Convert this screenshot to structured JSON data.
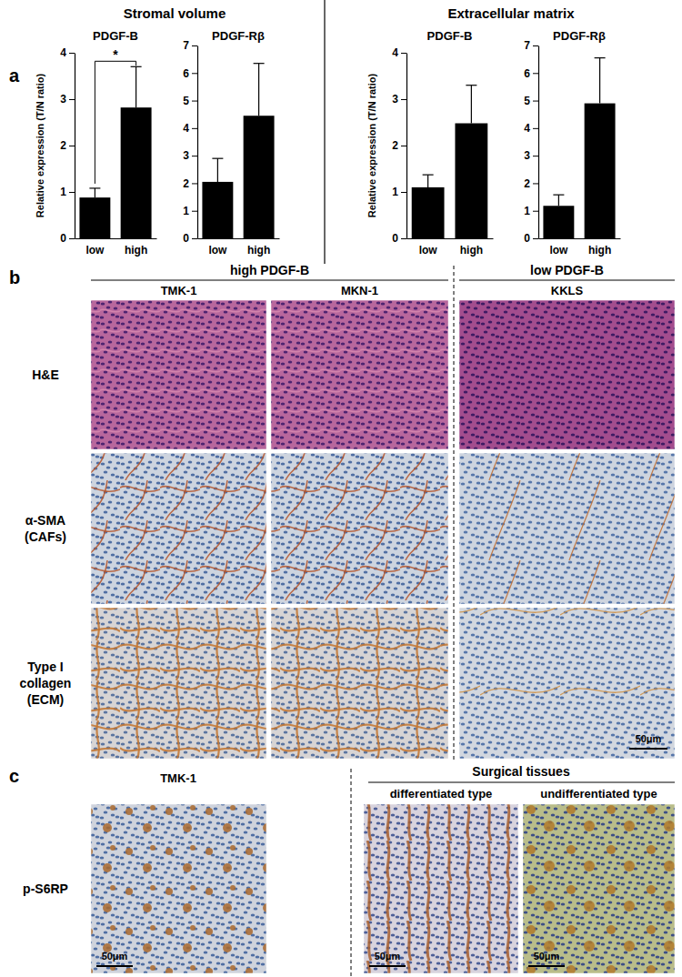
{
  "chart_data": [
    {
      "type": "bar",
      "title": "PDGF-B",
      "y_label": "Relative expression (T/N ratio)",
      "categories": [
        "low",
        "high"
      ],
      "values": [
        0.88,
        2.82
      ],
      "errors": [
        0.2,
        0.88
      ],
      "color": "#000000",
      "ylim": [
        0,
        4
      ],
      "yticks": [
        0,
        1,
        2,
        3,
        4
      ],
      "annotation": "*"
    },
    {
      "type": "bar",
      "title": "PDGF-Rβ",
      "categories": [
        "low",
        "high"
      ],
      "values": [
        2.05,
        4.45
      ],
      "errors": [
        0.85,
        1.9
      ],
      "color": "#000000",
      "ylim": [
        0,
        7
      ],
      "yticks": [
        0,
        1,
        2,
        3,
        4,
        5,
        6,
        7
      ]
    },
    {
      "type": "bar",
      "title": "PDGF-B",
      "y_label": "Relative expression (T/N ratio)",
      "categories": [
        "low",
        "high"
      ],
      "values": [
        1.1,
        2.48
      ],
      "errors": [
        0.27,
        0.82
      ],
      "color": "#000000",
      "ylim": [
        0,
        4
      ],
      "yticks": [
        0,
        1,
        2,
        3,
        4
      ]
    },
    {
      "type": "bar",
      "title": "PDGF-Rβ",
      "categories": [
        "low",
        "high"
      ],
      "values": [
        1.18,
        4.9
      ],
      "errors": [
        0.4,
        1.65
      ],
      "color": "#000000",
      "ylim": [
        0,
        7
      ],
      "yticks": [
        0,
        1,
        2,
        3,
        4,
        5,
        6,
        7
      ]
    }
  ],
  "panel_a": {
    "label": "a",
    "groups": [
      "Stromal volume",
      "Extracellular matrix"
    ]
  },
  "panel_b": {
    "label": "b",
    "groups": [
      {
        "title": "high PDGF-B",
        "columns": [
          "TMK-1",
          "MKN-1"
        ]
      },
      {
        "title": "low PDGF-B",
        "columns": [
          "KKLS"
        ]
      }
    ],
    "rows": [
      [
        "H&E"
      ],
      [
        "α-SMA",
        "(CAFs)"
      ],
      [
        "Type I",
        "collagen",
        "(ECM)"
      ]
    ],
    "scale_bar": "50μm"
  },
  "panel_c": {
    "label": "c",
    "row": "p-S6RP",
    "left": "TMK-1",
    "group": {
      "title": "Surgical tissues",
      "columns": [
        "differentiated type",
        "undifferentiated type"
      ]
    },
    "scale_bar": "50μm"
  }
}
